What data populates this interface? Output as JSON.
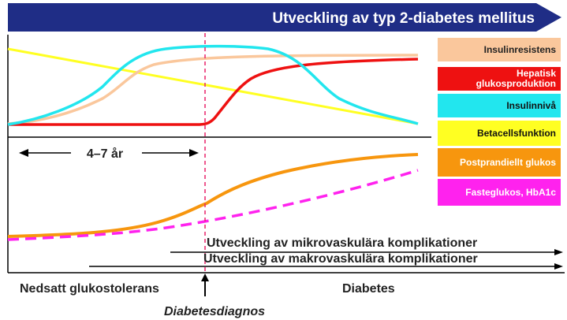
{
  "header": {
    "title": "Utveckling av typ 2-diabetes mellitus",
    "arrow_color": "#1f2d86",
    "title_color": "#ffffff"
  },
  "legend": {
    "items": [
      {
        "label": "Insulinresistens",
        "color": "#fac79c",
        "text_color": "#222222"
      },
      {
        "label": "Hepatisk glukosproduktion",
        "color": "#ee1111",
        "text_color": "#ffffff"
      },
      {
        "label": "Insulinnivå",
        "color": "#22e6ee",
        "text_color": "#111111"
      },
      {
        "label": "Betacellsfunktion",
        "color": "#ffff22",
        "text_color": "#111111"
      },
      {
        "label": "Postprandiellt glukos",
        "color": "#f7960e",
        "text_color": "#ffffff"
      },
      {
        "label": "Fasteglukos, HbA1c",
        "color": "#ff22ee",
        "text_color": "#ffffff"
      }
    ]
  },
  "duration": {
    "label": "4–7 år"
  },
  "complications": {
    "micro": "Utveckling av mikrovaskulära komplikationer",
    "macro": "Utveckling av makrovaskulära komplikationer"
  },
  "stages": {
    "impaired": "Nedsatt glukostolerans",
    "diabetes": "Diabetes"
  },
  "diagnosis": {
    "label": "Diabetesdiagnos",
    "line_color": "#e8246a"
  }
}
